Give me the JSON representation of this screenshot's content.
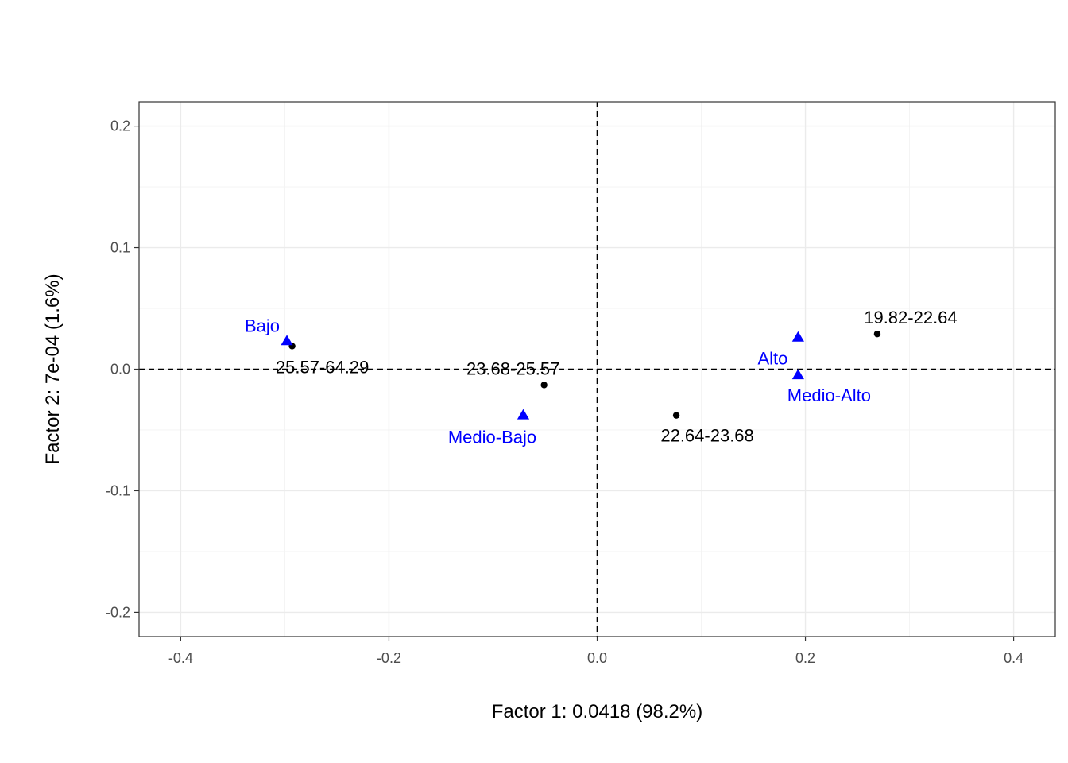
{
  "chart_data": {
    "type": "scatter",
    "xlabel": "Factor 1: 0.0418 (98.2%)",
    "ylabel": "Factor 2: 7e-04 (1.6%)",
    "xlim": [
      -0.44,
      0.44
    ],
    "ylim": [
      -0.22,
      0.22
    ],
    "x_ticks": [
      -0.4,
      -0.2,
      0.0,
      0.2,
      0.4
    ],
    "x_tick_labels": [
      "-0.4",
      "-0.2",
      "0.0",
      "0.2",
      "0.4"
    ],
    "y_ticks": [
      -0.2,
      -0.1,
      0.0,
      0.1,
      0.2
    ],
    "y_tick_labels": [
      "-0.2",
      "-0.1",
      "0.0",
      "0.1",
      "0.2"
    ],
    "grid": true,
    "reference_lines": {
      "x": 0,
      "y": 0,
      "style": "dashed"
    },
    "series": [
      {
        "color": "#000000",
        "marker": "circle",
        "points": [
          {
            "label": "19.82-22.64",
            "x": 0.269,
            "y": 0.029
          },
          {
            "label": "22.64-23.68",
            "x": 0.076,
            "y": -0.038
          },
          {
            "label": "23.68-25.57",
            "x": -0.051,
            "y": -0.013
          },
          {
            "label": "25.57-64.29",
            "x": -0.293,
            "y": 0.019
          }
        ]
      },
      {
        "color": "#0000ff",
        "marker": "triangle",
        "points": [
          {
            "label": "Alto",
            "x": 0.193,
            "y": 0.026
          },
          {
            "label": "Bajo",
            "x": -0.298,
            "y": 0.023
          },
          {
            "label": "Medio-Alto",
            "x": 0.193,
            "y": -0.005
          },
          {
            "label": "Medio-Bajo",
            "x": -0.071,
            "y": -0.038
          }
        ]
      }
    ]
  }
}
